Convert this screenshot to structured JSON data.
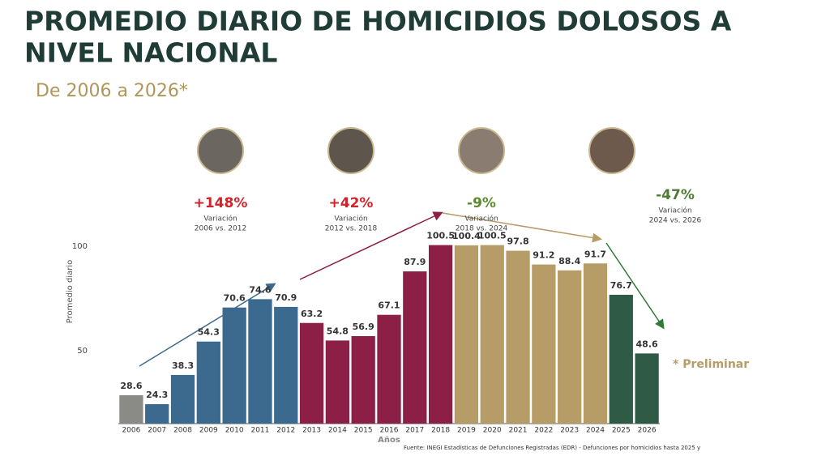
{
  "chart_data": {
    "type": "bar",
    "title": "PROMEDIO DIARIO DE HOMICIDIOS DOLOSOS A",
    "title_line2": "NIVEL NACIONAL",
    "subtitle": "De 2006 a 2026*",
    "y_label": "Promedio diario",
    "x_label": "Años",
    "categories": [
      "2006",
      "2007",
      "2008",
      "2009",
      "2010",
      "2011",
      "2012",
      "2013",
      "2014",
      "2015",
      "2016",
      "2017",
      "2018",
      "2019",
      "2020",
      "2021",
      "2022",
      "2023",
      "2024",
      "2025",
      "2026"
    ],
    "values": [
      28.6,
      24.3,
      38.3,
      54.3,
      70.6,
      74.6,
      70.9,
      63.2,
      54.8,
      56.9,
      67.1,
      87.9,
      100.5,
      100.4,
      100.5,
      97.8,
      91.2,
      88.4,
      91.7,
      76.7,
      48.6
    ],
    "colors": [
      "#8a8a86",
      "#3b6a8e",
      "#3b6a8e",
      "#3b6a8e",
      "#3b6a8e",
      "#3b6a8e",
      "#3b6a8e",
      "#8c1f45",
      "#8c1f45",
      "#8c1f45",
      "#8c1f45",
      "#8c1f45",
      "#8c1f45",
      "#b69c66",
      "#b69c66",
      "#b69c66",
      "#b69c66",
      "#b69c66",
      "#b69c66",
      "#2f5a45",
      "#2f5a45"
    ],
    "ylim": [
      15,
      105
    ],
    "yticks": [
      50,
      100
    ],
    "periods": [
      {
        "change": "+148%",
        "label": "Variación",
        "range": "2006 vs. 2012",
        "color": "#d0242b"
      },
      {
        "change": "+42%",
        "label": "Variación",
        "range": "2012 vs. 2018",
        "color": "#d0242b"
      },
      {
        "change": "-9%",
        "label": "Variación",
        "range": "2018 vs. 2024",
        "color": "#5b8a2e"
      },
      {
        "change": "-47%",
        "label": "Variación",
        "range": "2024 vs. 2026",
        "color": "#4d7a35"
      }
    ],
    "note": "* Preliminar",
    "source": "Fuente: INEGI Estadísticas de Defunciones Registradas (EDR) - Defunciones por homicidios hasta 2025 y"
  }
}
